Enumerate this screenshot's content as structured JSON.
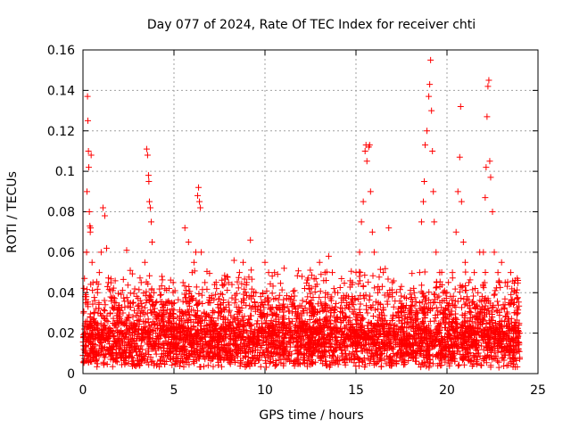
{
  "chart_data": {
    "type": "scatter",
    "title": "Day 077 of 2024, Rate Of TEC Index for receiver chti",
    "xlabel": "GPS time / hours",
    "ylabel": "ROTI / TECUs",
    "xlim": [
      0,
      25
    ],
    "ylim": [
      0,
      0.16
    ],
    "x_ticks": [
      0,
      5,
      10,
      15,
      20,
      25
    ],
    "y_ticks": [
      0,
      0.02,
      0.04,
      0.06,
      0.08,
      0.1,
      0.12,
      0.14,
      0.16
    ],
    "x_tick_labels": [
      "0",
      "5",
      "10",
      "15",
      "20",
      "25"
    ],
    "y_tick_labels": [
      "0",
      "0.02",
      "0.04",
      "0.06",
      "0.08",
      "0.1",
      "0.12",
      "0.14",
      "0.16"
    ],
    "marker": "+",
    "color": "#ff0000",
    "grid": true,
    "series": [
      {
        "name": "ROTI",
        "points": [
          [
            0.05,
            0.012
          ],
          [
            0.1,
            0.02
          ],
          [
            0.15,
            0.035
          ],
          [
            0.2,
            0.06
          ],
          [
            0.22,
            0.09
          ],
          [
            0.25,
            0.137
          ],
          [
            0.27,
            0.125
          ],
          [
            0.3,
            0.11
          ],
          [
            0.32,
            0.102
          ],
          [
            0.35,
            0.08
          ],
          [
            0.38,
            0.073
          ],
          [
            0.4,
            0.07
          ],
          [
            0.42,
            0.072
          ],
          [
            0.45,
            0.108
          ],
          [
            0.5,
            0.055
          ],
          [
            0.55,
            0.045
          ],
          [
            0.6,
            0.03
          ],
          [
            0.7,
            0.025
          ],
          [
            0.8,
            0.04
          ],
          [
            0.9,
            0.05
          ],
          [
            1.0,
            0.06
          ],
          [
            1.1,
            0.082
          ],
          [
            1.2,
            0.078
          ],
          [
            1.3,
            0.062
          ],
          [
            1.4,
            0.045
          ],
          [
            1.5,
            0.03
          ],
          [
            2.0,
            0.02
          ],
          [
            2.2,
            0.03
          ],
          [
            2.4,
            0.061
          ],
          [
            2.6,
            0.035
          ],
          [
            2.8,
            0.025
          ],
          [
            3.0,
            0.03
          ],
          [
            3.2,
            0.045
          ],
          [
            3.4,
            0.055
          ],
          [
            3.5,
            0.111
          ],
          [
            3.55,
            0.108
          ],
          [
            3.6,
            0.098
          ],
          [
            3.62,
            0.095
          ],
          [
            3.65,
            0.085
          ],
          [
            3.7,
            0.082
          ],
          [
            3.75,
            0.075
          ],
          [
            3.8,
            0.065
          ],
          [
            3.9,
            0.04
          ],
          [
            4.0,
            0.035
          ],
          [
            4.2,
            0.03
          ],
          [
            4.5,
            0.042
          ],
          [
            4.8,
            0.03
          ],
          [
            5.0,
            0.025
          ],
          [
            5.2,
            0.02
          ],
          [
            5.5,
            0.045
          ],
          [
            5.6,
            0.072
          ],
          [
            5.8,
            0.065
          ],
          [
            6.0,
            0.05
          ],
          [
            6.1,
            0.055
          ],
          [
            6.2,
            0.06
          ],
          [
            6.3,
            0.088
          ],
          [
            6.35,
            0.092
          ],
          [
            6.4,
            0.085
          ],
          [
            6.45,
            0.082
          ],
          [
            6.5,
            0.06
          ],
          [
            6.7,
            0.045
          ],
          [
            7.0,
            0.035
          ],
          [
            7.5,
            0.03
          ],
          [
            8.0,
            0.045
          ],
          [
            8.3,
            0.056
          ],
          [
            8.6,
            0.05
          ],
          [
            8.8,
            0.055
          ],
          [
            9.0,
            0.045
          ],
          [
            9.2,
            0.066
          ],
          [
            9.5,
            0.04
          ],
          [
            9.8,
            0.035
          ],
          [
            10.0,
            0.055
          ],
          [
            10.2,
            0.05
          ],
          [
            10.5,
            0.03
          ],
          [
            11.0,
            0.025
          ],
          [
            11.5,
            0.03
          ],
          [
            12.0,
            0.025
          ],
          [
            12.5,
            0.035
          ],
          [
            12.8,
            0.047
          ],
          [
            13.0,
            0.055
          ],
          [
            13.3,
            0.05
          ],
          [
            13.5,
            0.058
          ],
          [
            13.7,
            0.05
          ],
          [
            14.0,
            0.04
          ],
          [
            14.3,
            0.03
          ],
          [
            14.5,
            0.035
          ],
          [
            14.8,
            0.045
          ],
          [
            15.0,
            0.05
          ],
          [
            15.2,
            0.06
          ],
          [
            15.3,
            0.075
          ],
          [
            15.4,
            0.085
          ],
          [
            15.5,
            0.11
          ],
          [
            15.55,
            0.113
          ],
          [
            15.6,
            0.105
          ],
          [
            15.7,
            0.112
          ],
          [
            15.75,
            0.113
          ],
          [
            15.8,
            0.09
          ],
          [
            15.9,
            0.07
          ],
          [
            16.0,
            0.06
          ],
          [
            16.2,
            0.04
          ],
          [
            16.5,
            0.05
          ],
          [
            16.8,
            0.072
          ],
          [
            17.0,
            0.045
          ],
          [
            17.3,
            0.03
          ],
          [
            17.5,
            0.025
          ],
          [
            17.8,
            0.02
          ],
          [
            18.0,
            0.03
          ],
          [
            18.2,
            0.04
          ],
          [
            18.5,
            0.05
          ],
          [
            18.6,
            0.075
          ],
          [
            18.7,
            0.085
          ],
          [
            18.75,
            0.095
          ],
          [
            18.8,
            0.113
          ],
          [
            18.9,
            0.12
          ],
          [
            19.0,
            0.137
          ],
          [
            19.05,
            0.143
          ],
          [
            19.1,
            0.155
          ],
          [
            19.15,
            0.13
          ],
          [
            19.2,
            0.11
          ],
          [
            19.25,
            0.09
          ],
          [
            19.3,
            0.075
          ],
          [
            19.4,
            0.06
          ],
          [
            19.6,
            0.05
          ],
          [
            19.8,
            0.04
          ],
          [
            20.0,
            0.035
          ],
          [
            20.3,
            0.05
          ],
          [
            20.5,
            0.07
          ],
          [
            20.6,
            0.09
          ],
          [
            20.7,
            0.107
          ],
          [
            20.75,
            0.132
          ],
          [
            20.8,
            0.085
          ],
          [
            20.9,
            0.065
          ],
          [
            21.0,
            0.055
          ],
          [
            21.2,
            0.045
          ],
          [
            21.5,
            0.05
          ],
          [
            21.8,
            0.06
          ],
          [
            22.0,
            0.06
          ],
          [
            22.1,
            0.087
          ],
          [
            22.15,
            0.102
          ],
          [
            22.2,
            0.127
          ],
          [
            22.25,
            0.142
          ],
          [
            22.3,
            0.145
          ],
          [
            22.35,
            0.105
          ],
          [
            22.4,
            0.097
          ],
          [
            22.5,
            0.08
          ],
          [
            22.6,
            0.06
          ],
          [
            22.8,
            0.05
          ],
          [
            23.0,
            0.055
          ],
          [
            23.2,
            0.045
          ],
          [
            23.5,
            0.05
          ],
          [
            23.7,
            0.035
          ],
          [
            23.9,
            0.03
          ],
          [
            24.0,
            0.02
          ]
        ]
      }
    ]
  }
}
